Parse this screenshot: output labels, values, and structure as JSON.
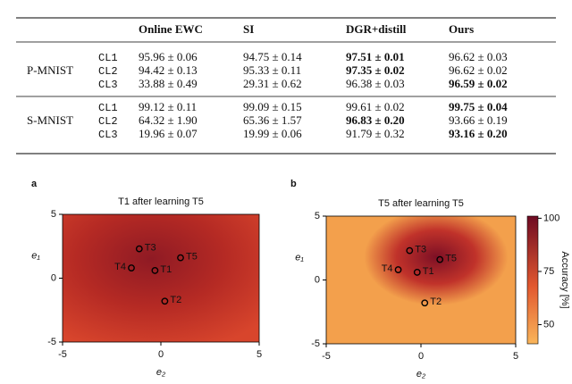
{
  "table": {
    "columns": [
      "Online EWC",
      "SI",
      "DGR+distill",
      "Ours"
    ],
    "groups": [
      {
        "name": "P-MNIST",
        "rows": [
          {
            "label": "CL1",
            "cells": [
              "95.96 ± 0.06",
              "94.75 ± 0.14",
              {
                "text": "97.51 ± 0.01",
                "bold": true
              },
              "96.62 ± 0.03"
            ]
          },
          {
            "label": "CL2",
            "cells": [
              "94.42 ± 0.13",
              "95.33 ± 0.11",
              {
                "text": "97.35 ± 0.02",
                "bold": true
              },
              "96.62 ± 0.02"
            ]
          },
          {
            "label": "CL3",
            "cells": [
              "33.88 ± 0.49",
              "29.31 ± 0.62",
              "96.38 ± 0.03",
              {
                "text": "96.59 ± 0.02",
                "bold": true
              }
            ]
          }
        ]
      },
      {
        "name": "S-MNIST",
        "rows": [
          {
            "label": "CL1",
            "cells": [
              "99.12 ± 0.11",
              "99.09 ± 0.15",
              "99.61 ± 0.02",
              {
                "text": "99.75 ± 0.04",
                "bold": true
              }
            ]
          },
          {
            "label": "CL2",
            "cells": [
              "64.32 ± 1.90",
              "65.36 ± 1.57",
              {
                "text": "96.83 ± 0.20",
                "bold": true
              },
              "93.66 ± 0.19"
            ]
          },
          {
            "label": "CL3",
            "cells": [
              "19.96 ± 0.07",
              "19.99 ± 0.06",
              "91.79 ± 0.32",
              {
                "text": "93.16 ± 0.20",
                "bold": true
              }
            ]
          }
        ]
      }
    ]
  },
  "chart_data": [
    {
      "type": "scatter",
      "panel": "a",
      "title": "T1 after learning T5",
      "xlabel": "e₂",
      "ylabel": "e₁",
      "labels": [
        "T1",
        "T2",
        "T3",
        "T4",
        "T5"
      ],
      "x": [
        -0.3,
        0.2,
        -1.1,
        -1.5,
        1.0
      ],
      "y": [
        0.6,
        -1.8,
        2.3,
        0.8,
        1.6
      ],
      "xlim": [
        -5,
        5
      ],
      "ylim": [
        -5,
        5
      ],
      "xticks": [
        -5,
        0,
        5
      ],
      "yticks": [
        -5,
        0,
        5
      ]
    },
    {
      "type": "scatter",
      "panel": "b",
      "title": "T5 after learning T5",
      "xlabel": "e₂",
      "ylabel": "e₁",
      "labels": [
        "T1",
        "T2",
        "T3",
        "T4",
        "T5"
      ],
      "x": [
        -0.2,
        0.2,
        -0.6,
        -1.2,
        1.0
      ],
      "y": [
        0.6,
        -1.8,
        2.3,
        0.8,
        1.6
      ],
      "xlim": [
        -5,
        5
      ],
      "ylim": [
        -5,
        5
      ],
      "xticks": [
        -5,
        0,
        5
      ],
      "yticks": [
        -5,
        0,
        5
      ],
      "colorbar": {
        "label": "Accuracy [%]",
        "lim": [
          41,
          101
        ],
        "ticks": [
          50,
          75,
          100
        ]
      }
    }
  ]
}
